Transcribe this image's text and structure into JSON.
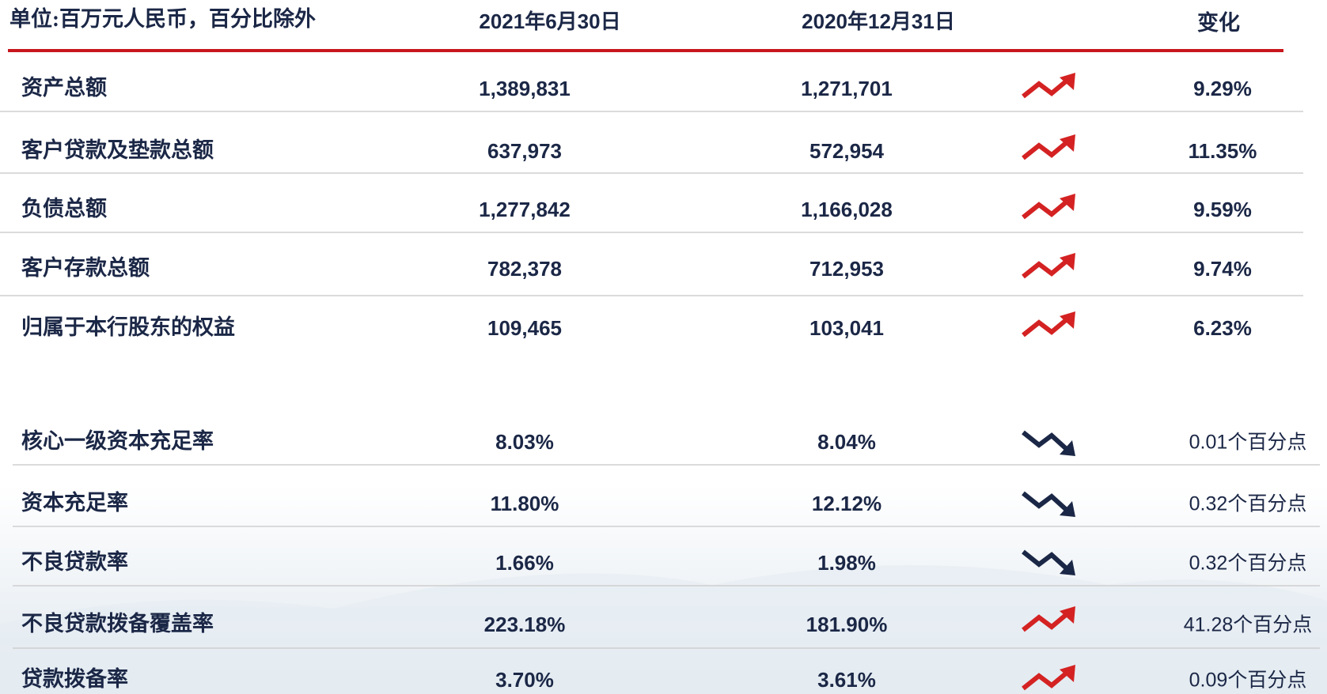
{
  "header": {
    "unit": "单位:百万元人民币，百分比除外",
    "col1": "2021年6月30日",
    "col2": "2020年12月31日",
    "change": "变化"
  },
  "table": {
    "rows": [
      [
        "资产总额",
        "1,389,831",
        "1,271,701",
        "9.29%"
      ],
      [
        "客户贷款及垫款总额",
        "637,973",
        "572,954",
        "11.35%"
      ],
      [
        "负债总额",
        "1,277,842",
        "1,166,028",
        "9.59%"
      ],
      [
        "客户存款总额",
        "782,378",
        "712,953",
        "9.74%"
      ],
      [
        "归属于本行股东的权益",
        "109,465",
        "103,041",
        "6.23%"
      ],
      [
        "核心一级资本充足率",
        "8.03%",
        "8.04%",
        "0.01个百分点"
      ],
      [
        "资本充足率",
        "11.80%",
        "12.12%",
        "0.32个百分点"
      ],
      [
        "不良贷款率",
        "1.66%",
        "1.98%",
        "0.32个百分点"
      ],
      [
        "不良贷款拨备覆盖率",
        "223.18%",
        "181.90%",
        "41.28个百分点"
      ],
      [
        "贷款拨备率",
        "3.70%",
        "3.61%",
        "0.09个百分点"
      ]
    ]
  }
}
